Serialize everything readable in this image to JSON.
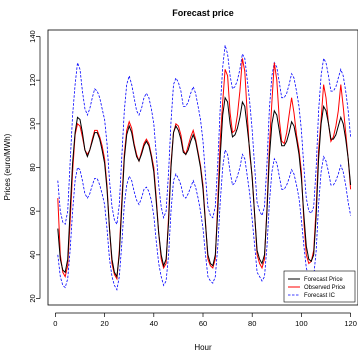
{
  "chart_data": {
    "type": "line",
    "title": "Forecast price",
    "xlabel": "Hour",
    "ylabel": "Prices (euro/MWh)",
    "xlim": [
      -3,
      123
    ],
    "ylim": [
      17,
      143
    ],
    "x_ticks": [
      0,
      20,
      40,
      60,
      80,
      100,
      120
    ],
    "y_ticks": [
      20,
      40,
      60,
      80,
      100,
      120,
      140
    ],
    "grid": false,
    "legend_position": "bottom-right",
    "legend": [
      {
        "label": "Forecast Price",
        "color": "#000000",
        "style": "solid"
      },
      {
        "label": "Observed Price",
        "color": "#ff0000",
        "style": "solid"
      },
      {
        "label": "Forecast IC",
        "color": "#0000ff",
        "style": "dashed"
      }
    ],
    "x": [
      1,
      2,
      3,
      4,
      5,
      6,
      7,
      8,
      9,
      10,
      11,
      12,
      13,
      14,
      15,
      16,
      17,
      18,
      19,
      20,
      21,
      22,
      23,
      24,
      25,
      26,
      27,
      28,
      29,
      30,
      31,
      32,
      33,
      34,
      35,
      36,
      37,
      38,
      39,
      40,
      41,
      42,
      43,
      44,
      45,
      46,
      47,
      48,
      49,
      50,
      51,
      52,
      53,
      54,
      55,
      56,
      57,
      58,
      59,
      60,
      61,
      62,
      63,
      64,
      65,
      66,
      67,
      68,
      69,
      70,
      71,
      72,
      73,
      74,
      75,
      76,
      77,
      78,
      79,
      80,
      81,
      82,
      83,
      84,
      85,
      86,
      87,
      88,
      89,
      90,
      91,
      92,
      93,
      94,
      95,
      96,
      97,
      98,
      99,
      100,
      101,
      102,
      103,
      104,
      105,
      106,
      107,
      108,
      109,
      110,
      111,
      112,
      113,
      114,
      115,
      116,
      117,
      118,
      119,
      120
    ],
    "series": [
      {
        "name": "Forecast Price",
        "color": "#000000",
        "style": "solid",
        "values": [
          52,
          38,
          33,
          32,
          38,
          60,
          82,
          96,
          103,
          102,
          96,
          88,
          85,
          88,
          92,
          96,
          96,
          93,
          88,
          82,
          70,
          52,
          38,
          32,
          30,
          40,
          62,
          84,
          95,
          99,
          96,
          90,
          85,
          83,
          86,
          90,
          92,
          90,
          85,
          78,
          64,
          50,
          40,
          35,
          38,
          55,
          80,
          96,
          99,
          97,
          93,
          87,
          86,
          88,
          92,
          95,
          92,
          86,
          80,
          70,
          54,
          40,
          36,
          35,
          40,
          60,
          85,
          104,
          112,
          110,
          100,
          94,
          95,
          98,
          103,
          110,
          108,
          98,
          88,
          75,
          58,
          42,
          38,
          36,
          40,
          60,
          85,
          100,
          106,
          104,
          97,
          90,
          90,
          92,
          96,
          101,
          99,
          93,
          86,
          75,
          58,
          44,
          38,
          37,
          40,
          58,
          84,
          100,
          108,
          106,
          100,
          93,
          93,
          95,
          99,
          103,
          100,
          93,
          84,
          72
        ]
      },
      {
        "name": "Observed Price",
        "color": "#ff0000",
        "style": "solid",
        "values": [
          66,
          40,
          32,
          30,
          35,
          55,
          78,
          95,
          100,
          99,
          94,
          88,
          86,
          88,
          93,
          97,
          97,
          94,
          90,
          84,
          72,
          52,
          36,
          31,
          29,
          42,
          65,
          86,
          97,
          101,
          98,
          91,
          86,
          83,
          87,
          91,
          93,
          91,
          86,
          80,
          66,
          50,
          38,
          34,
          36,
          58,
          82,
          96,
          100,
          99,
          95,
          88,
          86,
          90,
          94,
          97,
          93,
          87,
          81,
          72,
          55,
          38,
          35,
          34,
          38,
          65,
          92,
          110,
          125,
          122,
          105,
          96,
          97,
          104,
          115,
          130,
          124,
          104,
          86,
          76,
          58,
          40,
          36,
          34,
          38,
          62,
          90,
          110,
          128,
          120,
          102,
          92,
          91,
          96,
          104,
          112,
          105,
          95,
          88,
          78,
          55,
          40,
          36,
          37,
          42,
          62,
          88,
          102,
          118,
          112,
          100,
          92,
          94,
          99,
          106,
          118,
          108,
          96,
          84,
          70
        ]
      },
      {
        "name": "Forecast IC Upper",
        "color": "#0000ff",
        "style": "dashed",
        "values": [
          74,
          60,
          55,
          54,
          60,
          82,
          104,
          118,
          128,
          125,
          115,
          107,
          104,
          107,
          112,
          116,
          115,
          112,
          107,
          102,
          91,
          74,
          62,
          56,
          54,
          63,
          85,
          106,
          118,
          122,
          118,
          112,
          106,
          104,
          107,
          112,
          114,
          112,
          107,
          100,
          86,
          72,
          62,
          57,
          60,
          78,
          101,
          118,
          121,
          119,
          115,
          108,
          108,
          110,
          114,
          117,
          114,
          108,
          102,
          92,
          76,
          62,
          58,
          57,
          62,
          82,
          107,
          126,
          136,
          132,
          122,
          116,
          117,
          120,
          125,
          132,
          130,
          120,
          110,
          97,
          80,
          64,
          60,
          58,
          62,
          82,
          107,
          122,
          128,
          126,
          119,
          112,
          112,
          114,
          118,
          123,
          121,
          115,
          108,
          97,
          80,
          66,
          60,
          59,
          62,
          80,
          106,
          122,
          130,
          128,
          122,
          115,
          115,
          117,
          121,
          125,
          122,
          115,
          106,
          94
        ]
      },
      {
        "name": "Forecast IC Lower",
        "color": "#0000ff",
        "style": "dashed",
        "values": [
          40,
          30,
          26,
          25,
          29,
          42,
          60,
          74,
          80,
          79,
          74,
          68,
          66,
          68,
          72,
          75,
          75,
          72,
          68,
          63,
          52,
          38,
          30,
          26,
          24,
          30,
          45,
          63,
          72,
          76,
          74,
          69,
          65,
          63,
          66,
          70,
          71,
          69,
          65,
          58,
          46,
          36,
          30,
          26,
          28,
          40,
          60,
          74,
          77,
          75,
          72,
          67,
          66,
          68,
          71,
          74,
          71,
          66,
          60,
          52,
          40,
          30,
          28,
          27,
          30,
          44,
          64,
          80,
          88,
          86,
          78,
          72,
          73,
          76,
          80,
          86,
          84,
          76,
          68,
          56,
          44,
          32,
          30,
          28,
          30,
          44,
          64,
          78,
          84,
          82,
          76,
          70,
          70,
          72,
          75,
          79,
          77,
          72,
          66,
          56,
          44,
          34,
          30,
          29,
          30,
          42,
          63,
          78,
          85,
          83,
          78,
          72,
          72,
          74,
          77,
          81,
          78,
          72,
          64,
          58
        ]
      }
    ]
  }
}
